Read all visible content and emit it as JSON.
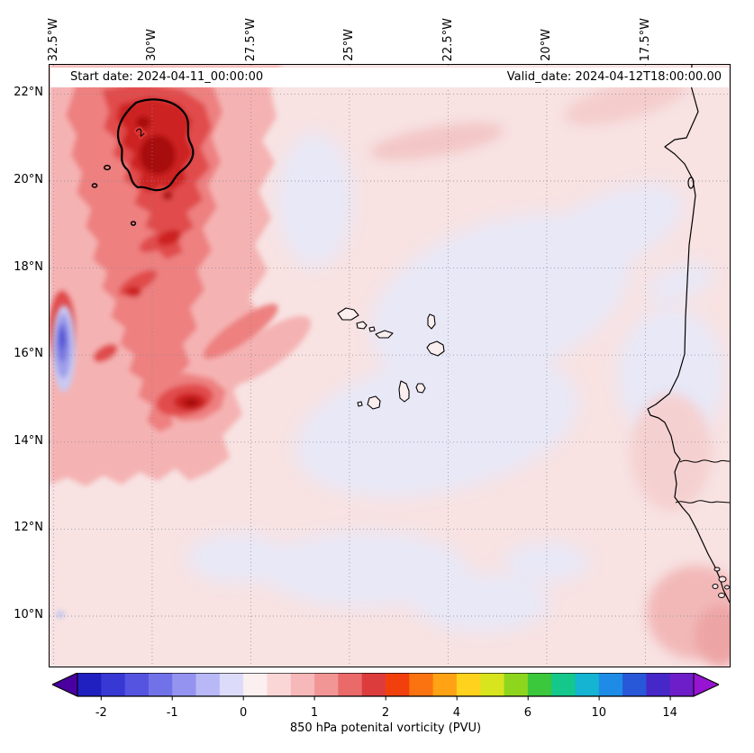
{
  "header": {
    "start_date": "Start date: 2024-04-11_00:00:00",
    "valid_date": "Valid_date: 2024-04-12T18:00:00.00"
  },
  "axes": {
    "lon_ticks": [
      "32.5°W",
      "30°W",
      "27.5°W",
      "25°W",
      "22.5°W",
      "20°W",
      "17.5°W"
    ],
    "lat_ticks": [
      "22°N",
      "20°N",
      "18°N",
      "16°N",
      "14°N",
      "12°N",
      "10°N"
    ]
  },
  "map": {
    "contour_label": "2"
  },
  "colorbar": {
    "caption": "850 hPa potenital vorticity (PVU)",
    "tick_labels": [
      "-2",
      "-1",
      "0",
      "1",
      "2",
      "4",
      "6",
      "10",
      "14"
    ],
    "under_color": "#4a00a0",
    "over_color": "#9614d2",
    "cell_colors": [
      "#2020c0",
      "#3838d4",
      "#5454e0",
      "#7272e8",
      "#9494f0",
      "#b8b8f6",
      "#dcdcfa",
      "#fcefef",
      "#fad6d6",
      "#f6b8b8",
      "#f19595",
      "#ea6a6a",
      "#dd3c3c",
      "#f2400c",
      "#fb7310",
      "#ffa214",
      "#ffd21e",
      "#d8e41e",
      "#8ed61e",
      "#3cc83c",
      "#14c88c",
      "#14b4d2",
      "#1e8ce6",
      "#2857d8",
      "#4628c8",
      "#6e1ec8"
    ]
  },
  "chart_data": {
    "type": "heatmap",
    "title_left": "Start date: 2024-04-11_00:00:00",
    "title_right": "Valid_date: 2024-04-12T18:00:00.00",
    "variable": "850 hPa potenital vorticity (PVU)",
    "colorbar_ticks": [
      -2,
      -1,
      0,
      1,
      2,
      4,
      6,
      10,
      14
    ],
    "contour_level_pvu": 2,
    "x_ticks_deg_west": [
      32.5,
      30,
      27.5,
      25,
      22.5,
      20,
      17.5
    ],
    "y_ticks_deg_north": [
      22,
      20,
      18,
      16,
      14,
      12,
      10
    ],
    "lon_range_deg_west": [
      32.6,
      15.4
    ],
    "lat_range_deg_north": [
      8.8,
      22.7
    ],
    "field_summary": [
      {
        "region": "northwest quadrant 26-33W, 13-22N",
        "value_pvu": "1 to >2; streaky red maxima, absolute max >2 PVU enclosed by black contour near 30-31W, 20-21.5N"
      },
      {
        "region": "secondary maximum near 29W, 14.8N",
        "value_pvu": "about 2"
      },
      {
        "region": "narrow streak at 32.4W, 15.3-16.7N",
        "value_pvu": "-1 to -2 (negative PV)"
      },
      {
        "region": "central and eastern Atlantic around Cape Verde",
        "value_pvu": "-0.25 to 0.5 (near zero, pale lavender/pink)"
      },
      {
        "region": "southeast corner near Guinea-Bissau coast",
        "value_pvu": "0.5 to 1"
      }
    ],
    "overlays": [
      "West African coastline with Gambia and Casamance rivers",
      "Cape Verde islands outlines",
      "dotted latitude-longitude graticule"
    ]
  }
}
